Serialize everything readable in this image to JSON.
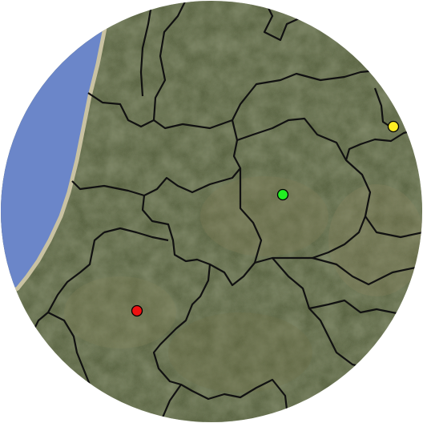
{
  "map": {
    "style": "satellite",
    "shape": "circle",
    "colors": {
      "ocean": "#6b86c9",
      "land": "#4f5a36",
      "border": "#111111",
      "coast": "#c9c2a2"
    },
    "markers": [
      {
        "id": "marker-yellow",
        "color": "#ffee22",
        "label": ""
      },
      {
        "id": "marker-green",
        "color": "#22ee22",
        "label": ""
      },
      {
        "id": "marker-red",
        "color": "#ee1111",
        "label": ""
      }
    ]
  }
}
